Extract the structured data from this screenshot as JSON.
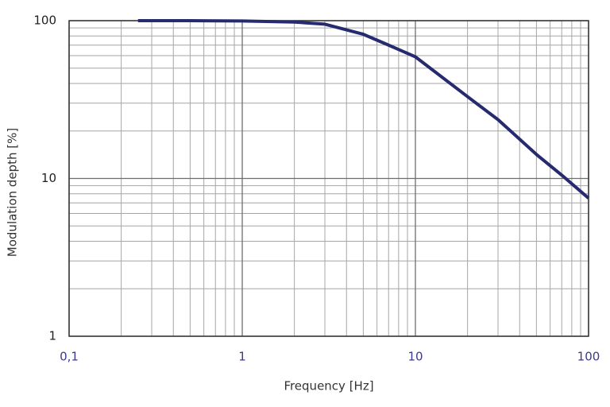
{
  "chart_data": {
    "type": "line",
    "x_label": "Frequency [Hz]",
    "y_label": "Modulation depth [%]",
    "x_scale": "log",
    "y_scale": "log",
    "grid": true,
    "minor_grid": true,
    "xlim": [
      0.1,
      100
    ],
    "ylim": [
      1,
      100
    ],
    "xticks": [
      {
        "value": 0.1,
        "label": "0,1"
      },
      1,
      10,
      100
    ],
    "yticks": [
      1,
      10,
      100
    ],
    "series": [
      {
        "color": "#262a6e",
        "x": [
          0.25,
          0.5,
          1,
          2,
          3,
          5,
          7,
          10,
          20,
          30,
          50,
          70,
          100
        ],
        "values": [
          100,
          100,
          99.5,
          98,
          95,
          82,
          70,
          59,
          33,
          23.6,
          14.2,
          10.5,
          7.5
        ]
      }
    ]
  }
}
